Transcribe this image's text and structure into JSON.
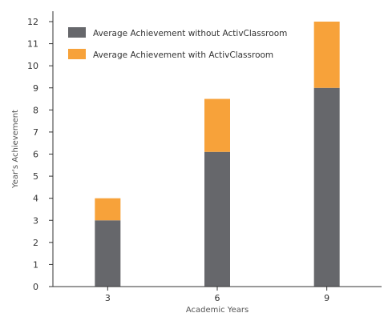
{
  "chart_data": {
    "type": "bar",
    "stacked": true,
    "categories": [
      "3",
      "6",
      "9"
    ],
    "series": [
      {
        "name": "Average Achievement without ActivClassroom",
        "values": [
          3,
          6.1,
          9
        ],
        "color": "#66676b"
      },
      {
        "name": "Average Achievement with ActivClassroom",
        "values": [
          1,
          2.4,
          3
        ],
        "color": "#f7a23a"
      }
    ],
    "xlabel": "Academic Years",
    "ylabel": "Year's Achievement",
    "ylim": [
      0,
      12
    ],
    "yticks": [
      0,
      1,
      2,
      3,
      4,
      5,
      6,
      7,
      8,
      9,
      10,
      11,
      12
    ],
    "grid": false,
    "legend_position": "top-left"
  }
}
